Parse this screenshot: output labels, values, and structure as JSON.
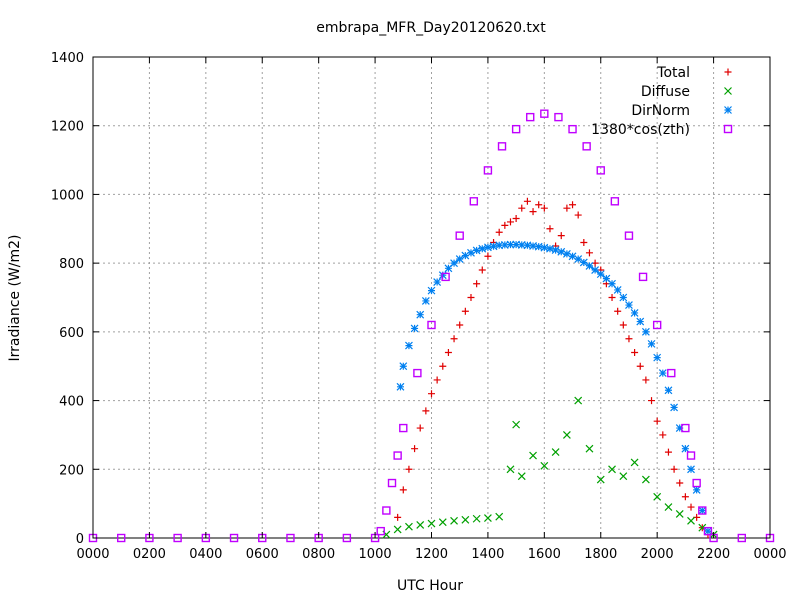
{
  "chart_data": {
    "type": "scatter",
    "title": "embrapa_MFR_Day20120620.txt",
    "xlabel": "UTC Hour",
    "ylabel": "Irradiance (W/m2)",
    "xlim": [
      0,
      24
    ],
    "ylim": [
      0,
      1400
    ],
    "x_ticks": [
      0,
      2,
      4,
      6,
      8,
      10,
      12,
      14,
      16,
      18,
      20,
      22,
      24
    ],
    "x_tick_labels": [
      "0000",
      "0200",
      "0400",
      "0600",
      "0800",
      "1000",
      "1200",
      "1400",
      "1600",
      "1800",
      "2000",
      "2200",
      "0000"
    ],
    "y_ticks": [
      0,
      200,
      400,
      600,
      800,
      1000,
      1200,
      1400
    ],
    "y_tick_labels": [
      "0",
      "200",
      "400",
      "600",
      "800",
      "1000",
      "1200",
      "1400"
    ],
    "grid": true,
    "legend_position": "top-right",
    "series": [
      {
        "name": "Total",
        "marker": "plus",
        "color": "#e00000",
        "x": [
          10.8,
          11.0,
          11.2,
          11.4,
          11.6,
          11.8,
          12.0,
          12.2,
          12.4,
          12.6,
          12.8,
          13.0,
          13.2,
          13.4,
          13.6,
          13.8,
          14.0,
          14.2,
          14.4,
          14.6,
          14.8,
          15.0,
          15.2,
          15.4,
          15.6,
          15.8,
          16.0,
          16.2,
          16.4,
          16.6,
          16.8,
          17.0,
          17.2,
          17.4,
          17.6,
          17.8,
          18.0,
          18.2,
          18.4,
          18.6,
          18.8,
          19.0,
          19.2,
          19.4,
          19.6,
          19.8,
          20.0,
          20.2,
          20.4,
          20.6,
          20.8,
          21.0,
          21.2,
          21.4,
          21.6,
          21.8
        ],
        "y": [
          60,
          140,
          200,
          260,
          320,
          370,
          420,
          460,
          500,
          540,
          580,
          620,
          660,
          700,
          740,
          780,
          820,
          860,
          890,
          910,
          920,
          930,
          960,
          980,
          950,
          970,
          960,
          900,
          850,
          880,
          960,
          970,
          940,
          860,
          830,
          800,
          780,
          740,
          700,
          660,
          620,
          580,
          540,
          500,
          460,
          400,
          340,
          300,
          250,
          200,
          160,
          120,
          90,
          60,
          30,
          10
        ]
      },
      {
        "name": "Diffuse",
        "marker": "cross",
        "color": "#00a000",
        "x": [
          10.4,
          10.8,
          11.2,
          11.6,
          12.0,
          12.4,
          12.8,
          13.2,
          13.6,
          14.0,
          14.4,
          14.8,
          15.0,
          15.2,
          15.6,
          16.0,
          16.4,
          16.8,
          17.2,
          17.6,
          18.0,
          18.4,
          18.8,
          19.2,
          19.6,
          20.0,
          20.4,
          20.8,
          21.2,
          21.6,
          22.0
        ],
        "y": [
          10,
          25,
          33,
          38,
          42,
          46,
          50,
          53,
          56,
          58,
          62,
          200,
          330,
          180,
          240,
          210,
          250,
          300,
          400,
          260,
          170,
          200,
          180,
          220,
          170,
          120,
          90,
          70,
          50,
          30,
          10
        ]
      },
      {
        "name": "DirNorm",
        "marker": "star",
        "color": "#0080f0",
        "x": [
          10.9,
          11.0,
          11.2,
          11.4,
          11.6,
          11.8,
          12.0,
          12.2,
          12.4,
          12.6,
          12.8,
          13.0,
          13.2,
          13.4,
          13.6,
          13.8,
          14.0,
          14.2,
          14.4,
          14.6,
          14.8,
          15.0,
          15.2,
          15.4,
          15.6,
          15.8,
          16.0,
          16.2,
          16.4,
          16.6,
          16.8,
          17.0,
          17.2,
          17.4,
          17.6,
          17.8,
          18.0,
          18.2,
          18.4,
          18.6,
          18.8,
          19.0,
          19.2,
          19.4,
          19.6,
          19.8,
          20.0,
          20.2,
          20.4,
          20.6,
          20.8,
          21.0,
          21.2,
          21.4,
          21.6,
          21.8
        ],
        "y": [
          440,
          500,
          560,
          610,
          650,
          690,
          720,
          745,
          765,
          785,
          800,
          812,
          822,
          830,
          837,
          842,
          846,
          849,
          852,
          853,
          854,
          854,
          853,
          852,
          850,
          848,
          845,
          842,
          838,
          833,
          827,
          820,
          812,
          802,
          792,
          780,
          768,
          755,
          740,
          722,
          700,
          678,
          655,
          630,
          600,
          565,
          525,
          480,
          430,
          380,
          320,
          260,
          200,
          140,
          80,
          20
        ]
      },
      {
        "name": "1380*cos(zth)",
        "marker": "open-square",
        "color": "#c000ff",
        "x": [
          0,
          1,
          2,
          3,
          4,
          5,
          6,
          7,
          8,
          9,
          10,
          10.2,
          10.4,
          10.6,
          10.8,
          11.0,
          11.5,
          12.0,
          12.5,
          13.0,
          13.5,
          14.0,
          14.5,
          15.0,
          15.5,
          16.0,
          16.5,
          17.0,
          17.5,
          18.0,
          18.5,
          19.0,
          19.5,
          20.0,
          20.5,
          21.0,
          21.2,
          21.4,
          21.6,
          21.8,
          22.0,
          23,
          24
        ],
        "y": [
          0,
          0,
          0,
          0,
          0,
          0,
          0,
          0,
          0,
          0,
          0,
          20,
          80,
          160,
          240,
          320,
          480,
          620,
          760,
          880,
          980,
          1070,
          1140,
          1190,
          1225,
          1235,
          1225,
          1190,
          1140,
          1070,
          980,
          880,
          760,
          620,
          480,
          320,
          240,
          160,
          80,
          20,
          0,
          0,
          0
        ]
      }
    ]
  }
}
